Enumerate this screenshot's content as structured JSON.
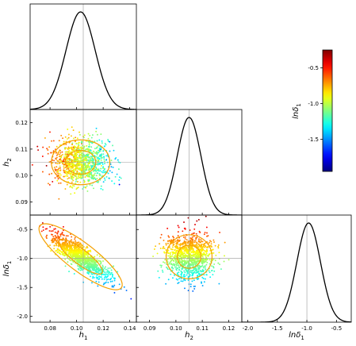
{
  "chart_data": {
    "type": "scatter",
    "layout": "corner-plot",
    "parameters": [
      {
        "name": "h1",
        "label_main": "h",
        "label_sub": "1",
        "range": [
          0.065,
          0.145
        ],
        "ticks": [
          "0.08",
          "0.10",
          "0.12",
          "0.14"
        ],
        "tick_values": [
          0.08,
          0.1,
          0.12,
          0.14
        ],
        "truth": 0.105
      },
      {
        "name": "h2",
        "label_main": "h",
        "label_sub": "2",
        "range": [
          0.085,
          0.125
        ],
        "ticks": [
          "0.09",
          "0.10",
          "0.11",
          "0.12"
        ],
        "tick_values": [
          0.09,
          0.1,
          0.11,
          0.12
        ],
        "truth": 0.105
      },
      {
        "name": "lndelta1",
        "label_main": "lnδ",
        "label_sub": "1",
        "range": [
          -2.1,
          -0.25
        ],
        "ticks": [
          "-2.0",
          "-1.5",
          "-1.0",
          "-0.5"
        ],
        "tick_values": [
          -2.0,
          -1.5,
          -1.0,
          -0.5
        ],
        "truth": -1.0
      }
    ],
    "marginals": [
      {
        "param": "h1",
        "mean": 0.103,
        "sd": 0.011
      },
      {
        "param": "h2",
        "mean": 0.105,
        "sd": 0.0045
      },
      {
        "param": "lndelta1",
        "mean": -0.97,
        "sd": 0.2
      }
    ],
    "panels": [
      {
        "x": "h1",
        "y": "h2",
        "mean": [
          0.103,
          0.105
        ],
        "sd": [
          0.011,
          0.0045
        ],
        "corr": 0.0,
        "color_corr_with_x": 0.85,
        "n_points": 1100,
        "contours": [
          {
            "level": "1-sigma",
            "rx": 0.0115,
            "ry": 0.0045
          },
          {
            "level": "2-sigma",
            "rx": 0.022,
            "ry": 0.0085
          }
        ]
      },
      {
        "x": "h1",
        "y": "lndelta1",
        "mean": [
          0.103,
          -0.97
        ],
        "sd": [
          0.011,
          0.2
        ],
        "corr": -0.85,
        "n_points": 1100,
        "contours": [
          {
            "level": "1-sigma",
            "scale": 1.0
          },
          {
            "level": "2-sigma",
            "scale": 1.9
          }
        ]
      },
      {
        "x": "h2",
        "y": "lndelta1",
        "mean": [
          0.105,
          -0.97
        ],
        "sd": [
          0.0045,
          0.2
        ],
        "corr": 0.0,
        "n_points": 1100,
        "contours": [
          {
            "level": "1-sigma",
            "rx": 0.0045,
            "ry": 0.2
          },
          {
            "level": "2-sigma",
            "rx": 0.0087,
            "ry": 0.38
          }
        ]
      }
    ],
    "colorbar": {
      "label_main": "lnδ",
      "label_sub": "1",
      "range": [
        -1.95,
        -0.25
      ],
      "ticks": [
        "-1.5",
        "-1.0",
        "-0.5"
      ],
      "tick_values": [
        -1.5,
        -1.0,
        -0.5
      ],
      "colormap": "jet"
    },
    "colors": {
      "contour": "#f5a000",
      "truth_line": "#999999",
      "marginal_line": "#000000"
    },
    "title": "",
    "grid": false
  }
}
